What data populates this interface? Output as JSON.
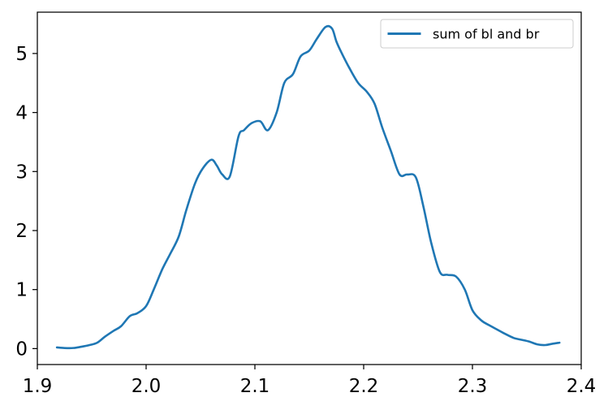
{
  "chart_data": {
    "type": "line",
    "title": "",
    "xlabel": "",
    "ylabel": "",
    "xlim": [
      1.9,
      2.4
    ],
    "ylim": [
      -0.27,
      5.7
    ],
    "x_ticks": [
      1.9,
      2.0,
      2.1,
      2.2,
      2.3,
      2.4
    ],
    "x_tick_labels": [
      "1.9",
      "2.0",
      "2.1",
      "2.2",
      "2.3",
      "2.4"
    ],
    "y_ticks": [
      0,
      1,
      2,
      3,
      4,
      5
    ],
    "y_tick_labels": [
      "0",
      "1",
      "2",
      "3",
      "4",
      "5"
    ],
    "grid": false,
    "legend": {
      "position": "top-right"
    },
    "series": [
      {
        "name": "sum of bl and br",
        "color": "#1f77b4",
        "x": [
          1.918,
          1.925,
          1.933,
          1.94,
          1.948,
          1.955,
          1.962,
          1.97,
          1.977,
          1.985,
          1.992,
          2.0,
          2.007,
          2.015,
          2.022,
          2.03,
          2.037,
          2.045,
          2.052,
          2.06,
          2.065,
          2.07,
          2.077,
          2.085,
          2.09,
          2.097,
          2.105,
          2.112,
          2.12,
          2.127,
          2.135,
          2.142,
          2.15,
          2.157,
          2.165,
          2.171,
          2.175,
          2.18,
          2.187,
          2.195,
          2.203,
          2.21,
          2.217,
          2.225,
          2.233,
          2.24,
          2.248,
          2.255,
          2.262,
          2.27,
          2.277,
          2.285,
          2.293,
          2.3,
          2.308,
          2.315,
          2.323,
          2.33,
          2.338,
          2.345,
          2.352,
          2.36,
          2.367,
          2.373,
          2.38
        ],
        "y": [
          0.02,
          0.01,
          0.01,
          0.03,
          0.06,
          0.1,
          0.2,
          0.3,
          0.38,
          0.55,
          0.6,
          0.72,
          1.0,
          1.35,
          1.6,
          1.9,
          2.35,
          2.8,
          3.05,
          3.2,
          3.1,
          2.95,
          2.92,
          3.6,
          3.7,
          3.82,
          3.85,
          3.7,
          4.0,
          4.5,
          4.65,
          4.95,
          5.05,
          5.25,
          5.45,
          5.42,
          5.2,
          5.0,
          4.75,
          4.5,
          4.35,
          4.15,
          3.75,
          3.35,
          2.95,
          2.95,
          2.9,
          2.4,
          1.8,
          1.3,
          1.25,
          1.22,
          1.0,
          0.65,
          0.48,
          0.4,
          0.32,
          0.25,
          0.18,
          0.15,
          0.12,
          0.07,
          0.06,
          0.08,
          0.1
        ]
      }
    ]
  }
}
